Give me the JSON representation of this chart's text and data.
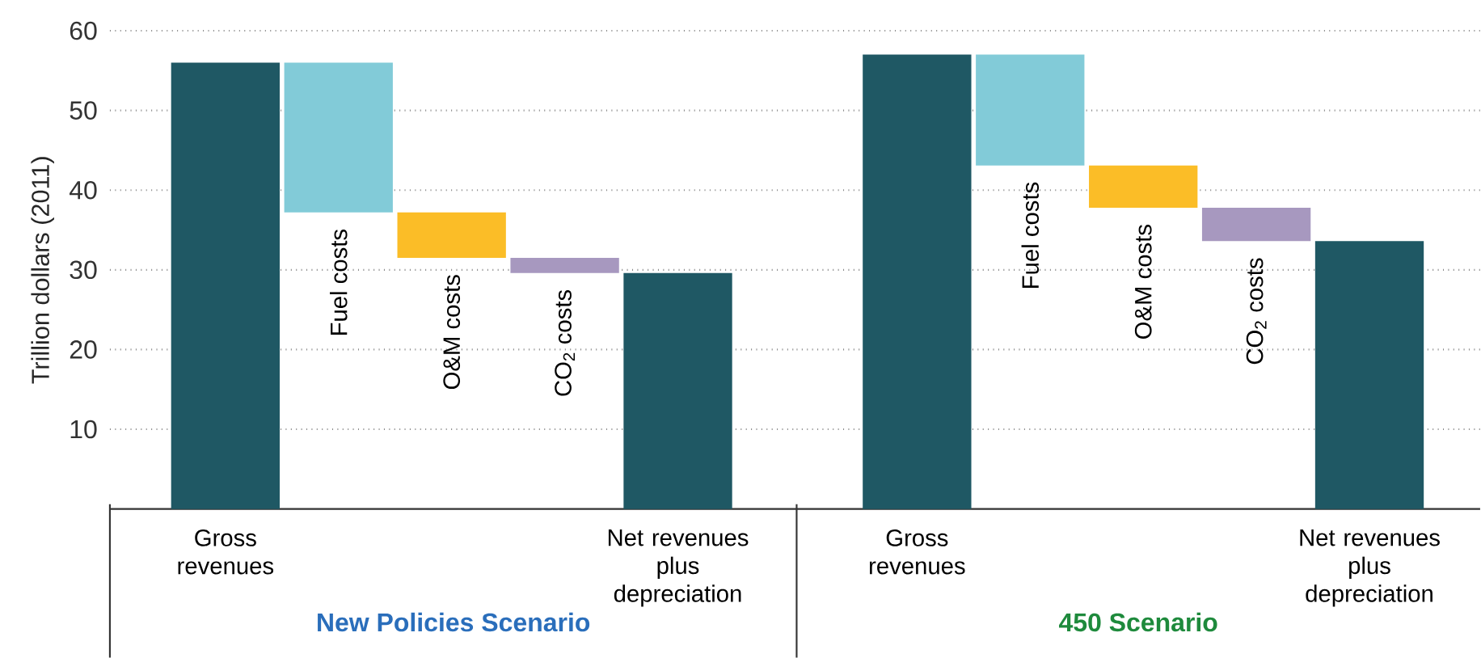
{
  "chart_data": [
    {
      "type": "bar",
      "title": "New Policies Scenario",
      "ylabel": "Trillion dollars (2011)",
      "categories": [
        "Gross revenues",
        "Fuel costs",
        "O&M costs",
        "CO$_{2}$ costs",
        "Net revenues plus depreciation"
      ],
      "values": [
        56,
        18.8,
        5.7,
        1.9,
        29.6
      ],
      "base": [
        0,
        37.2,
        31.5,
        29.6,
        0
      ],
      "colors": [
        "#1f5864",
        "#82cbd8",
        "#fbbd27",
        "#a798bf",
        "#1f5864"
      ],
      "ylim": [
        0,
        60
      ],
      "yticks": [
        10,
        20,
        30,
        40,
        50,
        60
      ],
      "grid": "y"
    },
    {
      "type": "bar",
      "title": "450 Scenario",
      "categories": [
        "Gross revenues",
        "Fuel costs",
        "O&M costs",
        "CO$_{2}$ costs",
        "Net revenues plus depreciation"
      ],
      "values": [
        57,
        13.9,
        5.3,
        4.2,
        33.6
      ],
      "base": [
        0,
        43.1,
        37.8,
        33.6,
        0
      ],
      "colors": [
        "#1f5864",
        "#82cbd8",
        "#fbbd27",
        "#a798bf",
        "#1f5864"
      ],
      "ylim": [
        0,
        60
      ],
      "yticks": [
        10,
        20,
        30,
        40,
        50,
        60
      ],
      "grid": "y",
      "tick_labels": "x"
    }
  ]
}
